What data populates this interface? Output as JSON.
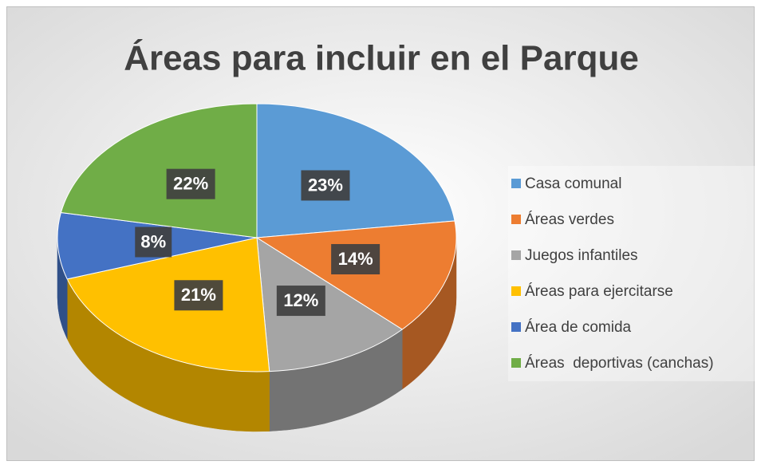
{
  "chart_data": {
    "type": "pie3d",
    "title": "Áreas para incluir en el Parque",
    "categories": [
      "Casa comunal",
      "Áreas verdes",
      "Juegos infantiles",
      "Áreas para ejercitarse",
      "Área de comida",
      "Áreas  deportivas (canchas)"
    ],
    "values": [
      23,
      14,
      12,
      21,
      8,
      22
    ],
    "value_labels": [
      "23%",
      "14%",
      "12%",
      "21%",
      "8%",
      "22%"
    ],
    "colors": [
      "#5b9bd5",
      "#ed7d31",
      "#a5a5a5",
      "#ffc000",
      "#4472c4",
      "#70ad47"
    ],
    "legend": "right"
  }
}
